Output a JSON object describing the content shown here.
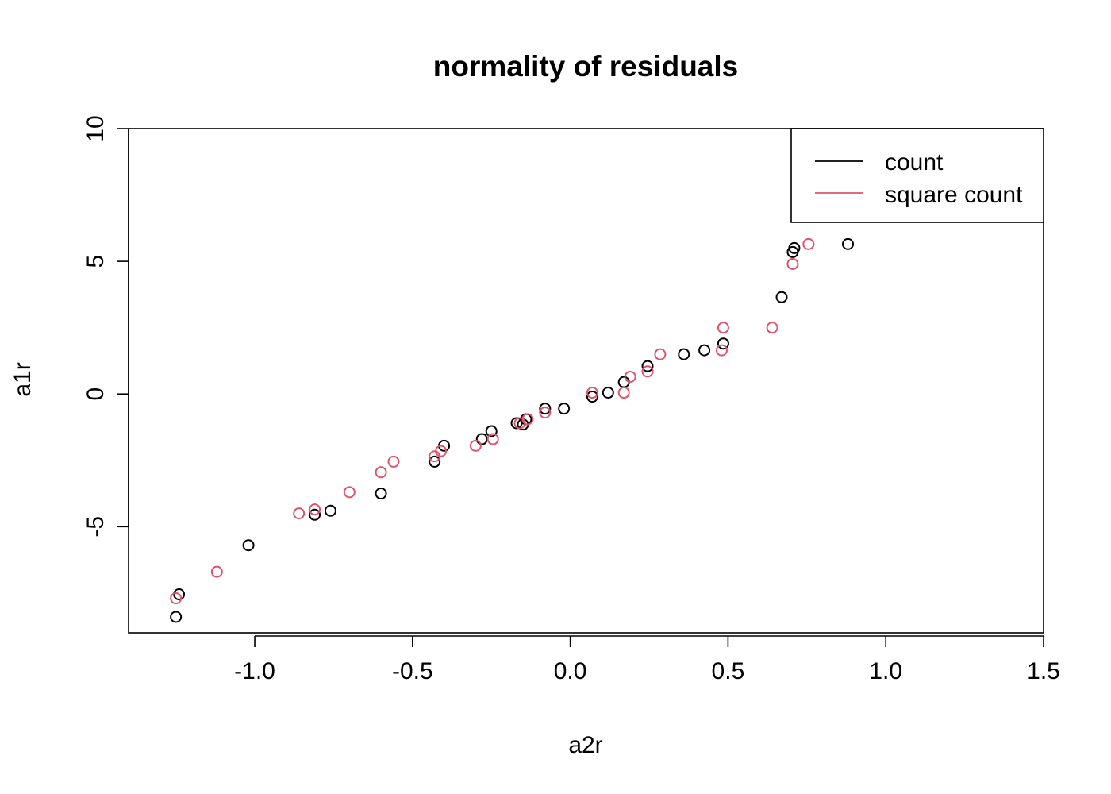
{
  "chart_data": {
    "type": "scatter",
    "title": "normality of residuals",
    "xlabel": "a2r",
    "ylabel": "a1r",
    "xlim": [
      -1.4,
      1.5
    ],
    "ylim": [
      -9,
      10
    ],
    "x_ticks": [
      -1.0,
      -0.5,
      0.0,
      0.5,
      1.0,
      1.5
    ],
    "x_tick_labels": [
      "-1.0",
      "-0.5",
      "0.0",
      "0.5",
      "1.0",
      "1.5"
    ],
    "y_ticks": [
      -5,
      0,
      5,
      10
    ],
    "y_tick_labels": [
      "-5",
      "0",
      "5",
      "10"
    ],
    "grid": false,
    "legend_position": "top-right",
    "series": [
      {
        "name": "count",
        "color": "#000000",
        "marker": "open-circle",
        "points": [
          {
            "x": -1.25,
            "y": -8.4
          },
          {
            "x": -1.24,
            "y": -7.55
          },
          {
            "x": -1.02,
            "y": -5.7
          },
          {
            "x": -0.81,
            "y": -4.55
          },
          {
            "x": -0.76,
            "y": -4.4
          },
          {
            "x": -0.6,
            "y": -3.75
          },
          {
            "x": -0.43,
            "y": -2.55
          },
          {
            "x": -0.4,
            "y": -1.95
          },
          {
            "x": -0.28,
            "y": -1.7
          },
          {
            "x": -0.25,
            "y": -1.4
          },
          {
            "x": -0.17,
            "y": -1.1
          },
          {
            "x": -0.15,
            "y": -1.15
          },
          {
            "x": -0.14,
            "y": -0.95
          },
          {
            "x": -0.08,
            "y": -0.55
          },
          {
            "x": -0.02,
            "y": -0.55
          },
          {
            "x": 0.07,
            "y": -0.1
          },
          {
            "x": 0.12,
            "y": 0.05
          },
          {
            "x": 0.17,
            "y": 0.45
          },
          {
            "x": 0.245,
            "y": 1.05
          },
          {
            "x": 0.36,
            "y": 1.5
          },
          {
            "x": 0.425,
            "y": 1.65
          },
          {
            "x": 0.485,
            "y": 1.9
          },
          {
            "x": 0.67,
            "y": 3.65
          },
          {
            "x": 0.705,
            "y": 5.35
          },
          {
            "x": 0.71,
            "y": 5.5
          },
          {
            "x": 0.88,
            "y": 5.65
          }
        ]
      },
      {
        "name": "square count",
        "color": "#df536b",
        "marker": "open-circle",
        "points": [
          {
            "x": -1.25,
            "y": -7.7
          },
          {
            "x": -1.12,
            "y": -6.7
          },
          {
            "x": -0.86,
            "y": -4.5
          },
          {
            "x": -0.81,
            "y": -4.35
          },
          {
            "x": -0.7,
            "y": -3.7
          },
          {
            "x": -0.6,
            "y": -2.95
          },
          {
            "x": -0.56,
            "y": -2.55
          },
          {
            "x": -0.43,
            "y": -2.35
          },
          {
            "x": -0.41,
            "y": -2.15
          },
          {
            "x": -0.3,
            "y": -1.95
          },
          {
            "x": -0.245,
            "y": -1.7
          },
          {
            "x": -0.16,
            "y": -1.1
          },
          {
            "x": -0.135,
            "y": -0.95
          },
          {
            "x": -0.08,
            "y": -0.7
          },
          {
            "x": 0.07,
            "y": 0.05
          },
          {
            "x": 0.17,
            "y": 0.05
          },
          {
            "x": 0.19,
            "y": 0.65
          },
          {
            "x": 0.245,
            "y": 0.85
          },
          {
            "x": 0.285,
            "y": 1.5
          },
          {
            "x": 0.48,
            "y": 1.65
          },
          {
            "x": 0.485,
            "y": 2.5
          },
          {
            "x": 0.64,
            "y": 2.5
          },
          {
            "x": 0.705,
            "y": 4.9
          },
          {
            "x": 0.755,
            "y": 5.65
          }
        ]
      }
    ]
  }
}
